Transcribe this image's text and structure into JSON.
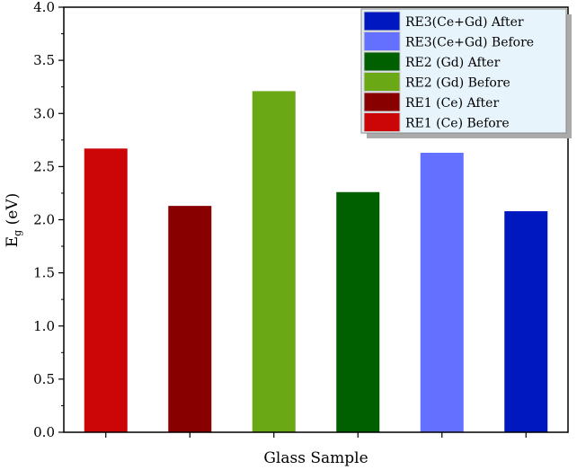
{
  "chart_data": {
    "type": "bar",
    "title": "",
    "xlabel": "Glass Sample",
    "ylabel": "E",
    "ylabel_sub": "g",
    "ylabel_unit": " (eV)",
    "ylim": [
      0,
      4.0
    ],
    "yticks": [
      "0.0",
      "0.5",
      "1.0",
      "1.5",
      "2.0",
      "2.5",
      "3.0",
      "3.5",
      "4.0"
    ],
    "grid": false,
    "legend_placement": "top-right",
    "series": [
      {
        "name": "RE1 (Ce) Before",
        "value": 2.67,
        "color": "#cc0606"
      },
      {
        "name": "RE1 (Ce) After",
        "value": 2.13,
        "color": "#880000"
      },
      {
        "name": "RE2 (Gd) Before",
        "value": 3.21,
        "color": "#6aa815"
      },
      {
        "name": "RE2 (Gd) After",
        "value": 2.26,
        "color": "#006000"
      },
      {
        "name": "RE3(Ce+Gd) Before",
        "value": 2.63,
        "color": "#6470ff"
      },
      {
        "name": "RE3(Ce+Gd) After",
        "value": 2.08,
        "color": "#0018c0"
      }
    ]
  }
}
